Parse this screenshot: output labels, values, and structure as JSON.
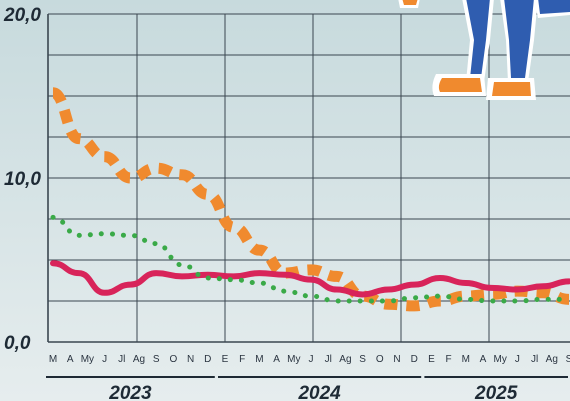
{
  "chart_data": {
    "type": "line",
    "title": "",
    "xlabel": "",
    "ylabel": "",
    "ylim": [
      0,
      20
    ],
    "y_ticks": [
      "0,0",
      "10,0",
      "20,0"
    ],
    "grid": true,
    "x_month_labels": [
      "M",
      "A",
      "My",
      "J",
      "Jl",
      "Ag",
      "S",
      "O",
      "N",
      "D",
      "E",
      "F",
      "M",
      "A",
      "My",
      "J",
      "Jl",
      "Ag",
      "S",
      "O",
      "N",
      "D",
      "E",
      "F",
      "M",
      "A",
      "My",
      "J",
      "Jl",
      "Ag",
      "S"
    ],
    "year_labels": [
      "2023",
      "2024",
      "2025"
    ],
    "year_spans": [
      [
        0,
        9
      ],
      [
        10,
        21
      ],
      [
        22,
        30
      ]
    ],
    "series": [
      {
        "color": "#f08a2e",
        "style": "dashed-thick",
        "values": [
          15.2,
          12.4,
          11.3,
          10.0,
          10.6,
          10.2,
          9.0,
          7.0,
          5.6,
          4.2,
          4.4,
          4.0,
          2.8,
          2.3,
          2.2,
          2.5,
          2.8,
          2.9,
          3.1,
          3.0,
          2.6
        ]
      },
      {
        "color": "#d8245a",
        "style": "solid-thick",
        "values": [
          4.8,
          4.2,
          3.0,
          3.5,
          4.2,
          4.0,
          4.1,
          4.0,
          4.2,
          4.1,
          3.8,
          3.2,
          2.9,
          3.2,
          3.5,
          3.9,
          3.6,
          3.3,
          3.2,
          3.4,
          3.7
        ]
      },
      {
        "color": "#3aaa48",
        "style": "dotted",
        "values": [
          7.6,
          6.5,
          6.6,
          6.5,
          6.0,
          4.7,
          3.9,
          3.8,
          3.6,
          3.1,
          2.8,
          2.5,
          2.5,
          2.5,
          2.7,
          2.8,
          2.6,
          2.5,
          2.5,
          2.6,
          2.6
        ]
      }
    ],
    "series_x_index": [
      0,
      1.5,
      3,
      4.5,
      6,
      7.5,
      9,
      10.5,
      12,
      13.5,
      15,
      16.5,
      18,
      19.5,
      21,
      22.5,
      24,
      25.5,
      27,
      28.5,
      30
    ]
  },
  "decoration": {
    "illustration": "person-legs-illustration"
  }
}
